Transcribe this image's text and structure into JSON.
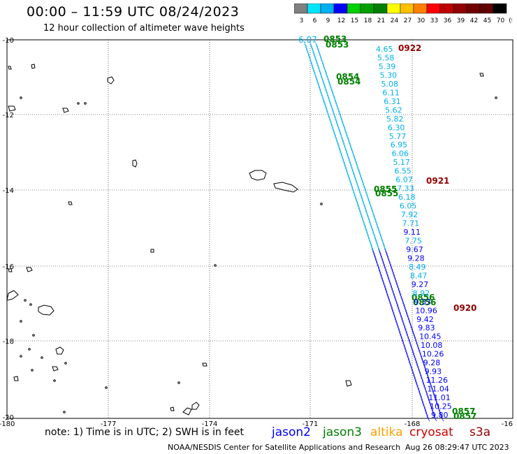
{
  "header": {
    "title": "00:00 – 11:59 UTC 08/24/2023",
    "subtitle": "12 hour collection of altimeter wave heights"
  },
  "colorbar": {
    "labels": [
      "3",
      "6",
      "9",
      "12",
      "15",
      "18",
      "21",
      "24",
      "27",
      "30",
      "33",
      "36",
      "39",
      "42",
      "45",
      "70",
      "(ft)"
    ],
    "colors": [
      "#808080",
      "#00e5ff",
      "#00b0f0",
      "#0000ff",
      "#00d000",
      "#00a000",
      "#008000",
      "#ffff00",
      "#ffc000",
      "#ff8000",
      "#ff0000",
      "#c00000",
      "#900000",
      "#700000",
      "#600000",
      "#000000"
    ]
  },
  "map": {
    "lat_labels": [
      "-10",
      "-12",
      "-14",
      "-16",
      "-18",
      "-20"
    ],
    "lon_labels": [
      "-180",
      "-177",
      "-174",
      "-171",
      "-168",
      "-16"
    ],
    "pass_times": [
      {
        "text": "0853",
        "color": "#008000"
      },
      {
        "text": "0853",
        "color": "#008000"
      },
      {
        "text": "0922",
        "color": "#900000"
      },
      {
        "text": "0854",
        "color": "#008000"
      },
      {
        "text": "0854",
        "color": "#008000"
      },
      {
        "text": "0855",
        "color": "#008000"
      },
      {
        "text": "0855",
        "color": "#008000"
      },
      {
        "text": "0921",
        "color": "#900000"
      },
      {
        "text": "0856",
        "color": "#008000"
      },
      {
        "text": "0856",
        "color": "#008000"
      },
      {
        "text": "0920",
        "color": "#900000"
      },
      {
        "text": "0857",
        "color": "#008000"
      },
      {
        "text": "0857",
        "color": "#008000"
      },
      {
        "text": "6.07",
        "color": "#00b0f0"
      }
    ],
    "cryosat_values": [
      {
        "v": "4.65",
        "c": "#00b0f0"
      },
      {
        "v": "5.58",
        "c": "#00b0f0"
      },
      {
        "v": "5.39",
        "c": "#00b0f0"
      },
      {
        "v": "5.30",
        "c": "#00b0f0"
      },
      {
        "v": "5.08",
        "c": "#00b0f0"
      },
      {
        "v": "6.11",
        "c": "#00b0f0"
      },
      {
        "v": "6.31",
        "c": "#00b0f0"
      },
      {
        "v": "5.62",
        "c": "#00b0f0"
      },
      {
        "v": "5.82",
        "c": "#00b0f0"
      },
      {
        "v": "6.30",
        "c": "#00b0f0"
      },
      {
        "v": "5.77",
        "c": "#00b0f0"
      },
      {
        "v": "6.95",
        "c": "#00b0f0"
      },
      {
        "v": "6.06",
        "c": "#00b0f0"
      },
      {
        "v": "5.17",
        "c": "#00b0f0"
      },
      {
        "v": "6.55",
        "c": "#00b0f0"
      },
      {
        "v": "6.07",
        "c": "#00b0f0"
      },
      {
        "v": "7.33",
        "c": "#00b0f0"
      },
      {
        "v": "6.18",
        "c": "#00b0f0"
      },
      {
        "v": "6.05",
        "c": "#00b0f0"
      },
      {
        "v": "7.92",
        "c": "#00b0f0"
      },
      {
        "v": "7.71",
        "c": "#00b0f0"
      },
      {
        "v": "9.11",
        "c": "#0000ff"
      },
      {
        "v": "7.75",
        "c": "#00b0f0"
      },
      {
        "v": "9.67",
        "c": "#0000ff"
      },
      {
        "v": "9.28",
        "c": "#0000ff"
      },
      {
        "v": "8.49",
        "c": "#00b0f0"
      },
      {
        "v": "8.47",
        "c": "#00b0f0"
      },
      {
        "v": "9.27",
        "c": "#0000ff"
      },
      {
        "v": "8.92",
        "c": "#00b0f0"
      },
      {
        "v": "9.33",
        "c": "#0000ff"
      },
      {
        "v": "10.96",
        "c": "#0000ff"
      },
      {
        "v": "9.42",
        "c": "#0000ff"
      },
      {
        "v": "9.83",
        "c": "#0000ff"
      },
      {
        "v": "10.45",
        "c": "#0000ff"
      },
      {
        "v": "10.08",
        "c": "#0000ff"
      },
      {
        "v": "10.26",
        "c": "#0000ff"
      },
      {
        "v": "9.28",
        "c": "#0000ff"
      },
      {
        "v": "9.93",
        "c": "#0000ff"
      },
      {
        "v": "11.26",
        "c": "#0000ff"
      },
      {
        "v": "11.04",
        "c": "#0000ff"
      },
      {
        "v": "11.01",
        "c": "#0000ff"
      },
      {
        "v": "10.25",
        "c": "#0000ff"
      },
      {
        "v": "9.80",
        "c": "#0000ff"
      }
    ]
  },
  "footer": {
    "note": "note: 1) Time is in UTC; 2) SWH is in feet",
    "satellites": [
      {
        "name": "jason2",
        "color": "#0000ff"
      },
      {
        "name": "jason3",
        "color": "#008000"
      },
      {
        "name": "altika",
        "color": "#ffa000"
      },
      {
        "name": "cryosat",
        "color": "#cc0000"
      },
      {
        "name": "s3a",
        "color": "#900000"
      }
    ],
    "credit": "NOAA/NESDIS Center for Satellite Applications and Research",
    "timestamp": "Aug 26 08:29:47 UTC 2023"
  }
}
